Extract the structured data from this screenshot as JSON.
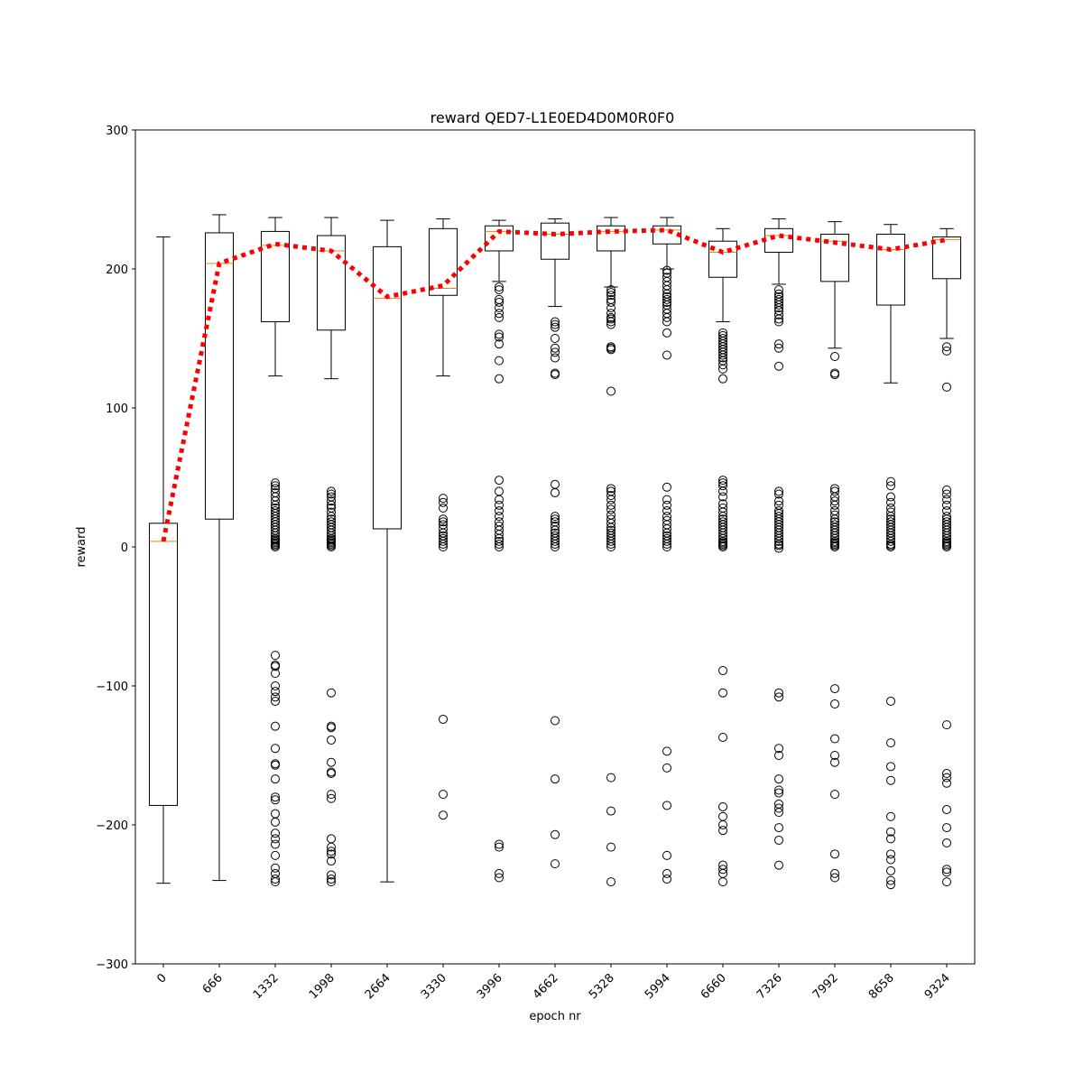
{
  "chart_data": {
    "type": "box",
    "title": "reward QED7-L1E0ED4D0M0R0F0",
    "xlabel": "epoch nr",
    "ylabel": "reward",
    "ylim": [
      -300,
      300
    ],
    "yticks": [
      -300,
      -200,
      -100,
      0,
      100,
      200,
      300
    ],
    "grid": false,
    "categories": [
      "0",
      "666",
      "1332",
      "1998",
      "2664",
      "3330",
      "3996",
      "4662",
      "5328",
      "5994",
      "6660",
      "7326",
      "7992",
      "8658",
      "9324"
    ],
    "mean_line": {
      "style": "dotted",
      "color": "#ff0000",
      "values": [
        4,
        204,
        218,
        213,
        180,
        188,
        227,
        225,
        227,
        228,
        212,
        224,
        219,
        214,
        221
      ]
    },
    "boxes": [
      {
        "q1": -186,
        "median": 4,
        "q3": 17,
        "whisker_low": -242,
        "whisker_high": 223,
        "outliers": []
      },
      {
        "q1": 20,
        "median": 204,
        "q3": 226,
        "whisker_low": -240,
        "whisker_high": 239,
        "outliers": []
      },
      {
        "q1": 162,
        "median": 217,
        "q3": 227,
        "whisker_low": 123,
        "whisker_high": 237,
        "outliers": [
          0,
          1,
          2,
          3,
          4,
          5,
          6,
          8,
          10,
          12,
          14,
          16,
          18,
          20,
          22,
          24,
          26,
          28,
          30,
          33,
          36,
          39,
          42,
          44,
          46,
          -78,
          -85,
          -86,
          -91,
          -100,
          -104,
          -108,
          -111,
          -129,
          -145,
          -156,
          -157,
          -167,
          -180,
          -182,
          -192,
          -198,
          -206,
          -210,
          -214,
          -222,
          -231,
          -235,
          -239,
          -241
        ]
      },
      {
        "q1": 156,
        "median": 213,
        "q3": 224,
        "whisker_low": 121,
        "whisker_high": 237,
        "outliers": [
          0,
          1,
          2,
          3,
          4,
          5,
          6,
          8,
          10,
          12,
          14,
          16,
          18,
          20,
          22,
          25,
          28,
          30,
          33,
          36,
          38,
          40,
          -105,
          -129,
          -130,
          -139,
          -155,
          -162,
          -163,
          -178,
          -181,
          -210,
          -216,
          -219,
          -221,
          -226,
          -236,
          -239,
          -241
        ]
      },
      {
        "q1": 13,
        "median": 179,
        "q3": 216,
        "whisker_low": -241,
        "whisker_high": 235,
        "outliers": []
      },
      {
        "q1": 181,
        "median": 186,
        "q3": 229,
        "whisker_low": 123,
        "whisker_high": 236,
        "outliers": [
          0,
          2,
          4,
          6,
          8,
          10,
          13,
          16,
          18,
          20,
          28,
          32,
          35,
          -124,
          -178,
          -193
        ]
      },
      {
        "q1": 213,
        "median": 227,
        "q3": 231,
        "whisker_low": 191,
        "whisker_high": 235,
        "outliers": [
          187,
          185,
          178,
          176,
          172,
          168,
          165,
          153,
          151,
          146,
          134,
          121,
          0,
          2,
          4,
          6,
          9,
          12,
          15,
          18,
          22,
          26,
          30,
          34,
          40,
          48,
          -214,
          -216,
          -235,
          -238
        ]
      },
      {
        "q1": 207,
        "median": 225,
        "q3": 233,
        "whisker_low": 173,
        "whisker_high": 236,
        "outliers": [
          162,
          160,
          158,
          150,
          143,
          140,
          136,
          125,
          124,
          0,
          2,
          4,
          6,
          8,
          10,
          12,
          15,
          18,
          20,
          22,
          39,
          45,
          -125,
          -167,
          -207,
          -228
        ]
      },
      {
        "q1": 213,
        "median": 227,
        "q3": 231,
        "whisker_low": 187,
        "whisker_high": 237,
        "outliers": [
          185,
          183,
          181,
          178,
          176,
          172,
          168,
          165,
          164,
          162,
          160,
          144,
          143,
          142,
          112,
          0,
          2,
          4,
          6,
          8,
          10,
          12,
          14,
          17,
          20,
          23,
          27,
          30,
          34,
          37,
          40,
          42,
          -166,
          -190,
          -216,
          -241
        ]
      },
      {
        "q1": 218,
        "median": 228,
        "q3": 231,
        "whisker_low": 200,
        "whisker_high": 237,
        "outliers": [
          199,
          197,
          194,
          191,
          188,
          185,
          182,
          180,
          178,
          176,
          174,
          171,
          168,
          165,
          162,
          154,
          138,
          0,
          2,
          4,
          6,
          8,
          10,
          13,
          16,
          19,
          22,
          26,
          30,
          34,
          43,
          -147,
          -159,
          -186,
          -222,
          -235,
          -239
        ]
      },
      {
        "q1": 194,
        "median": 212,
        "q3": 220,
        "whisker_low": 162,
        "whisker_high": 229,
        "outliers": [
          154,
          152,
          150,
          148,
          146,
          144,
          142,
          140,
          138,
          136,
          134,
          131,
          128,
          121,
          0,
          1,
          2,
          3,
          4,
          6,
          8,
          10,
          12,
          14,
          16,
          18,
          20,
          22,
          25,
          28,
          31,
          36,
          40,
          44,
          46,
          48,
          -89,
          -105,
          -137,
          -187,
          -194,
          -200,
          -204,
          -229,
          -232,
          -235,
          -241
        ]
      },
      {
        "q1": 212,
        "median": 224,
        "q3": 229,
        "whisker_low": 189,
        "whisker_high": 236,
        "outliers": [
          185,
          182,
          180,
          178,
          176,
          174,
          172,
          170,
          167,
          164,
          162,
          146,
          143,
          130,
          -1,
          1,
          2,
          4,
          6,
          8,
          10,
          12,
          14,
          16,
          18,
          20,
          22,
          24,
          26,
          30,
          33,
          38,
          40,
          -105,
          -108,
          -145,
          -150,
          -167,
          -175,
          -177,
          -185,
          -188,
          -191,
          -202,
          -211,
          -229
        ]
      },
      {
        "q1": 191,
        "median": 220,
        "q3": 225,
        "whisker_low": 143,
        "whisker_high": 234,
        "outliers": [
          137,
          125,
          124,
          0,
          1,
          2,
          3,
          4,
          6,
          8,
          10,
          12,
          14,
          16,
          18,
          20,
          23,
          26,
          30,
          33,
          36,
          40,
          42,
          -102,
          -113,
          -138,
          -150,
          -155,
          -178,
          -221,
          -235,
          -238
        ]
      },
      {
        "q1": 174,
        "median": 214,
        "q3": 225,
        "whisker_low": 118,
        "whisker_high": 232,
        "outliers": [
          0,
          1,
          2,
          4,
          6,
          8,
          10,
          12,
          14,
          16,
          18,
          20,
          22,
          25,
          28,
          32,
          36,
          44,
          47,
          -111,
          -141,
          -158,
          -168,
          -194,
          -205,
          -210,
          -221,
          -225,
          -233,
          -240,
          -243
        ]
      },
      {
        "q1": 193,
        "median": 221,
        "q3": 223,
        "whisker_low": 150,
        "whisker_high": 229,
        "outliers": [
          144,
          141,
          115,
          0,
          1,
          2,
          3,
          4,
          6,
          8,
          10,
          12,
          14,
          16,
          18,
          20,
          22,
          26,
          30,
          34,
          38,
          41,
          -128,
          -163,
          -166,
          -170,
          -189,
          -202,
          -213,
          -232,
          -234,
          -241
        ]
      }
    ],
    "colors": {
      "box": "#000000",
      "median": "#ff7f0e",
      "mean_line": "#ff0000",
      "flier": "#000000"
    }
  }
}
